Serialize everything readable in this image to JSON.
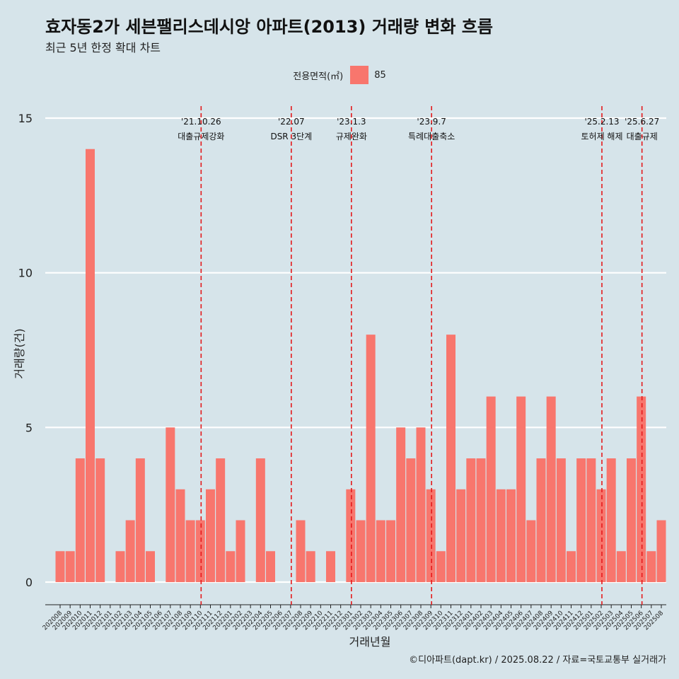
{
  "title": "효자동2가 세븐팰리스데시앙 아파트(2013) 거래량 변화 흐름",
  "subtitle": "최근 5년 한정 확대 차트",
  "caption": "©디아파트(dapt.kr) / 2025.08.22 / 자료=국토교통부 실거래가",
  "legend": {
    "title": "전용면적(㎡)",
    "items": [
      {
        "label": "85",
        "color": "#f8766d"
      }
    ]
  },
  "chart_data": {
    "type": "bar",
    "xlabel": "거래년월",
    "ylabel": "거래량(건)",
    "ylim": [
      0,
      15
    ],
    "yticks": [
      0,
      5,
      10,
      15
    ],
    "grid": true,
    "legend_position": "top",
    "categories": [
      "202008",
      "202009",
      "202010",
      "202011",
      "202012",
      "202101",
      "202102",
      "202103",
      "202104",
      "202105",
      "202106",
      "202107",
      "202108",
      "202109",
      "202110",
      "202111",
      "202112",
      "202201",
      "202202",
      "202203",
      "202204",
      "202205",
      "202206",
      "202207",
      "202208",
      "202209",
      "202210",
      "202211",
      "202212",
      "202301",
      "202302",
      "202303",
      "202304",
      "202305",
      "202306",
      "202307",
      "202308",
      "202309",
      "202310",
      "202311",
      "202312",
      "202401",
      "202402",
      "202403",
      "202404",
      "202405",
      "202406",
      "202407",
      "202408",
      "202409",
      "202410",
      "202411",
      "202412",
      "202501",
      "202502",
      "202503",
      "202504",
      "202505",
      "202506",
      "202507",
      "202508"
    ],
    "series": [
      {
        "name": "85",
        "color": "#f8766d",
        "values": [
          1,
          1,
          4,
          14,
          4,
          0,
          1,
          2,
          4,
          1,
          0,
          5,
          3,
          2,
          2,
          3,
          4,
          1,
          2,
          0,
          4,
          1,
          0,
          0,
          2,
          1,
          0,
          1,
          0,
          3,
          2,
          8,
          2,
          2,
          5,
          4,
          5,
          3,
          1,
          8,
          3,
          4,
          4,
          6,
          3,
          3,
          6,
          2,
          4,
          6,
          4,
          1,
          4,
          4,
          3,
          4,
          1,
          4,
          6,
          1,
          2
        ]
      }
    ],
    "events": [
      {
        "category": "202110",
        "date": "'21.10.26",
        "label": "대출규제강화"
      },
      {
        "category": "202207",
        "date": "'22.07",
        "label": "DSR 3단계"
      },
      {
        "category": "202301",
        "date": "'23.1.3",
        "label": "규제완화"
      },
      {
        "category": "202309",
        "date": "'23.9.7",
        "label": "특례대출축소"
      },
      {
        "category": "202502",
        "date": "'25.2.13",
        "label": "토허제 해제"
      },
      {
        "category": "202506",
        "date": "'25.6.27",
        "label": "대출규제"
      }
    ]
  }
}
